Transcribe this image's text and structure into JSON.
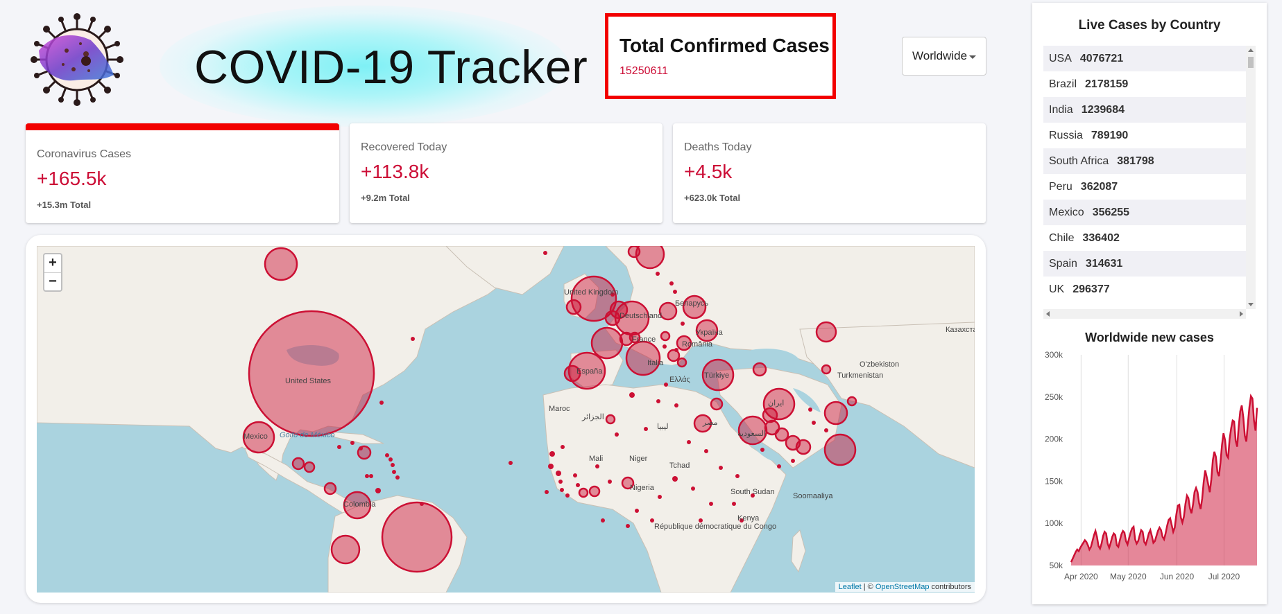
{
  "header": {
    "app_title": "COVID-19 Tracker",
    "total_title": "Total Confirmed Cases",
    "total_value": "15250611",
    "country_selected": "Worldwide"
  },
  "stats": [
    {
      "title": "Coronavirus Cases",
      "value": "+165.5k",
      "total": "+15.3m Total",
      "selected": true
    },
    {
      "title": "Recovered Today",
      "value": "+113.8k",
      "total": "+9.2m Total",
      "selected": false
    },
    {
      "title": "Deaths Today",
      "value": "+4.5k",
      "total": "+623.0k Total",
      "selected": false
    }
  ],
  "map": {
    "zoom_in": "+",
    "zoom_out": "−",
    "attribution_leaflet": "Leaflet",
    "attribution_sep": " | © ",
    "attribution_osm": "OpenStreetMap",
    "attribution_tail": " contributors",
    "labels": [
      "United States",
      "Mexico",
      "Colombia",
      "United Kingdom",
      "France",
      "España",
      "Italia",
      "Deutschland",
      "Україна",
      "Беларусь",
      "Türkiye",
      "ایران",
      "السعودية",
      "Mali",
      "Niger",
      "Nigeria",
      "South Sudan",
      "Kenya",
      "Maroc",
      "الجزائر",
      "ليبيا",
      "مصر",
      "Tchad",
      "Ελλάς",
      "Turkmenistan",
      "Казахстан",
      "Soomaaliya",
      "République démocratique du Congo",
      "Golfo de México",
      "România",
      "O'zbekiston"
    ],
    "bubble_color": "#cc1034"
  },
  "sidebar": {
    "live_title": "Live Cases by Country",
    "countries": [
      {
        "name": "USA",
        "cases": "4076721"
      },
      {
        "name": "Brazil",
        "cases": "2178159"
      },
      {
        "name": "India",
        "cases": "1239684"
      },
      {
        "name": "Russia",
        "cases": "789190"
      },
      {
        "name": "South Africa",
        "cases": "381798"
      },
      {
        "name": "Peru",
        "cases": "362087"
      },
      {
        "name": "Mexico",
        "cases": "356255"
      },
      {
        "name": "Chile",
        "cases": "336402"
      },
      {
        "name": "Spain",
        "cases": "314631"
      },
      {
        "name": "UK",
        "cases": "296377"
      }
    ],
    "chart_title": "Worldwide new cases"
  },
  "chart_data": {
    "type": "area",
    "title": "Worldwide new cases",
    "xlabel": "",
    "ylabel": "",
    "x_ticks": [
      "Apr 2020",
      "May 2020",
      "Jun 2020",
      "Jul 2020"
    ],
    "y_ticks": [
      "300k",
      "250k",
      "200k",
      "150k",
      "100k",
      "50k"
    ],
    "ylim": [
      50000,
      300000
    ],
    "x_start": "2020-03-23",
    "x_end": "2020-07-22",
    "grid": "vertical",
    "legend": "none",
    "series": [
      {
        "color": "#cc1034",
        "fill": "rgba(204,16,52,0.5)",
        "values": [
          54000,
          58000,
          62000,
          66000,
          69000,
          67000,
          71000,
          74000,
          77000,
          80000,
          78000,
          74000,
          69000,
          72000,
          79000,
          86000,
          91000,
          84000,
          73000,
          70000,
          76000,
          85000,
          90000,
          88000,
          76000,
          71000,
          77000,
          84000,
          88000,
          86000,
          74000,
          72000,
          80000,
          87000,
          91000,
          89000,
          79000,
          75000,
          82000,
          89000,
          94000,
          96000,
          81000,
          76000,
          79000,
          86000,
          92000,
          90000,
          78000,
          75000,
          81000,
          88000,
          92000,
          85000,
          77000,
          79000,
          85000,
          91000,
          95000,
          92000,
          84000,
          81000,
          88000,
          97000,
          104000,
          106000,
          98000,
          90000,
          95000,
          110000,
          121000,
          122000,
          107000,
          101000,
          108000,
          123000,
          133000,
          130000,
          118000,
          112000,
          122000,
          137000,
          142000,
          137000,
          124000,
          117000,
          129000,
          149000,
          163000,
          155000,
          146000,
          137000,
          152000,
          175000,
          185000,
          179000,
          161000,
          156000,
          172000,
          193000,
          207000,
          199000,
          181000,
          178000,
          200000,
          213000,
          222000,
          221000,
          198000,
          191000,
          215000,
          233000,
          240000,
          226000,
          204000,
          197000,
          218000,
          238000,
          251000,
          248000,
          222000,
          210000,
          237000
        ]
      }
    ]
  }
}
